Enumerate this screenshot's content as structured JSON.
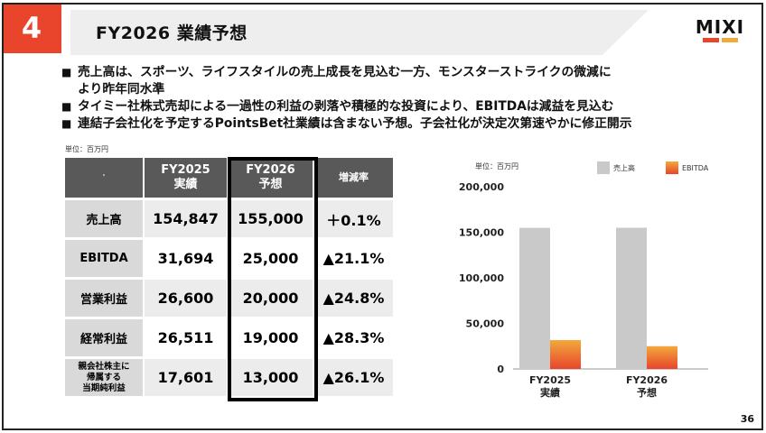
{
  "slide": {
    "number": "4",
    "title": "FY2026 業績予想",
    "page": "36"
  },
  "logo": {
    "text": "MIXI",
    "colors": [
      "#e8452c",
      "#f2a93b"
    ]
  },
  "bullets": [
    "売上高は、スポーツ、ライフスタイルの売上成長を見込む一方、モンスターストライクの微減に",
    "より昨年同水準",
    "タイミー社株式売却による一過性の利益の剥落や積極的な投資により、EBITDAは減益を見込む",
    "連結子会社化を予定するPointsBet社業績は含まない予想。子会社化が決定次第速やかに修正開示"
  ],
  "table": {
    "unit": "単位：百万円",
    "corner": "'",
    "headers": [
      {
        "line1": "FY2025",
        "line2": "実績"
      },
      {
        "line1": "FY2026",
        "line2": "予想"
      },
      {
        "line1": "増減率",
        "line2": ""
      }
    ],
    "rows": [
      {
        "label": "売上高",
        "fy2025": "154,847",
        "fy2026": "155,000",
        "change": "＋0.1%"
      },
      {
        "label": "EBITDA",
        "fy2025": "31,694",
        "fy2026": "25,000",
        "change": "▲21.1%"
      },
      {
        "label": "営業利益",
        "fy2025": "26,600",
        "fy2026": "20,000",
        "change": "▲24.8%"
      },
      {
        "label": "経常利益",
        "fy2025": "26,511",
        "fy2026": "19,000",
        "change": "▲28.3%"
      },
      {
        "label_lines": [
          "親会社株主に",
          "帰属する",
          "当期純利益"
        ],
        "fy2025": "17,601",
        "fy2026": "13,000",
        "change": "▲26.1%"
      }
    ]
  },
  "chart_data": {
    "type": "bar",
    "unit": "単位：百万円",
    "categories": [
      {
        "line1": "FY2025",
        "line2": "実績"
      },
      {
        "line1": "FY2026",
        "line2": "予想"
      }
    ],
    "series": [
      {
        "name": "売上高",
        "values": [
          154847,
          155000
        ],
        "color": "#c9c9c9"
      },
      {
        "name": "EBITDA",
        "values": [
          31694,
          25000
        ],
        "color_top": "#f2a93b",
        "color_bottom": "#e8452c"
      }
    ],
    "ylim": [
      0,
      200000
    ],
    "yticks": [
      0,
      50000,
      100000,
      150000,
      200000
    ],
    "ytick_labels": [
      "0",
      "50,000",
      "100,000",
      "150,000",
      "200,000"
    ],
    "legend_position": "top-right",
    "grid": false
  }
}
